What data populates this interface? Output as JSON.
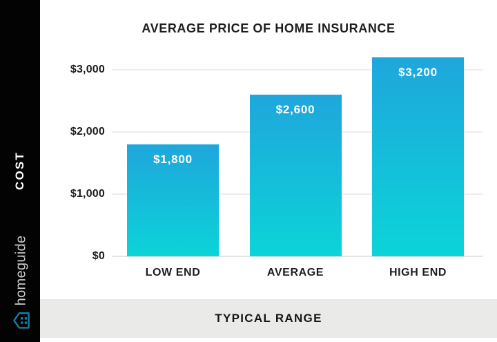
{
  "chart_data": {
    "type": "bar",
    "title": "AVERAGE PRICE OF HOME INSURANCE",
    "categories": [
      "LOW END",
      "AVERAGE",
      "HIGH END"
    ],
    "values": [
      1800,
      2600,
      3200
    ],
    "value_labels": [
      "$1,800",
      "$2,600",
      "$3,200"
    ],
    "y_ticks": [
      {
        "value": 3000,
        "label": "$3,000"
      },
      {
        "value": 2000,
        "label": "$2,000"
      },
      {
        "value": 1000,
        "label": "$1,000"
      },
      {
        "value": 0,
        "label": "$0"
      }
    ],
    "ylim": [
      0,
      3200
    ],
    "ylabel": "COST",
    "xlabel": "TYPICAL RANGE",
    "grid": true,
    "legend_position": "none",
    "bar_color_top": "#1fa6dc",
    "bar_color_bottom": "#0bd4d8",
    "gridline_color": "#ededeb",
    "text_color": "#1d1d1c",
    "value_label_color": "#ffffff"
  },
  "sidebar": {
    "cost_label": "COST",
    "brand_name": "homeguide",
    "logo_icon": "house-icon",
    "background": "#030303",
    "cost_text_color": "#ffffff",
    "brand_text_color": "#cbcbcb",
    "logo_color": "#1a7ca3"
  },
  "footer": {
    "label": "TYPICAL RANGE",
    "background": "#eaeae8"
  }
}
